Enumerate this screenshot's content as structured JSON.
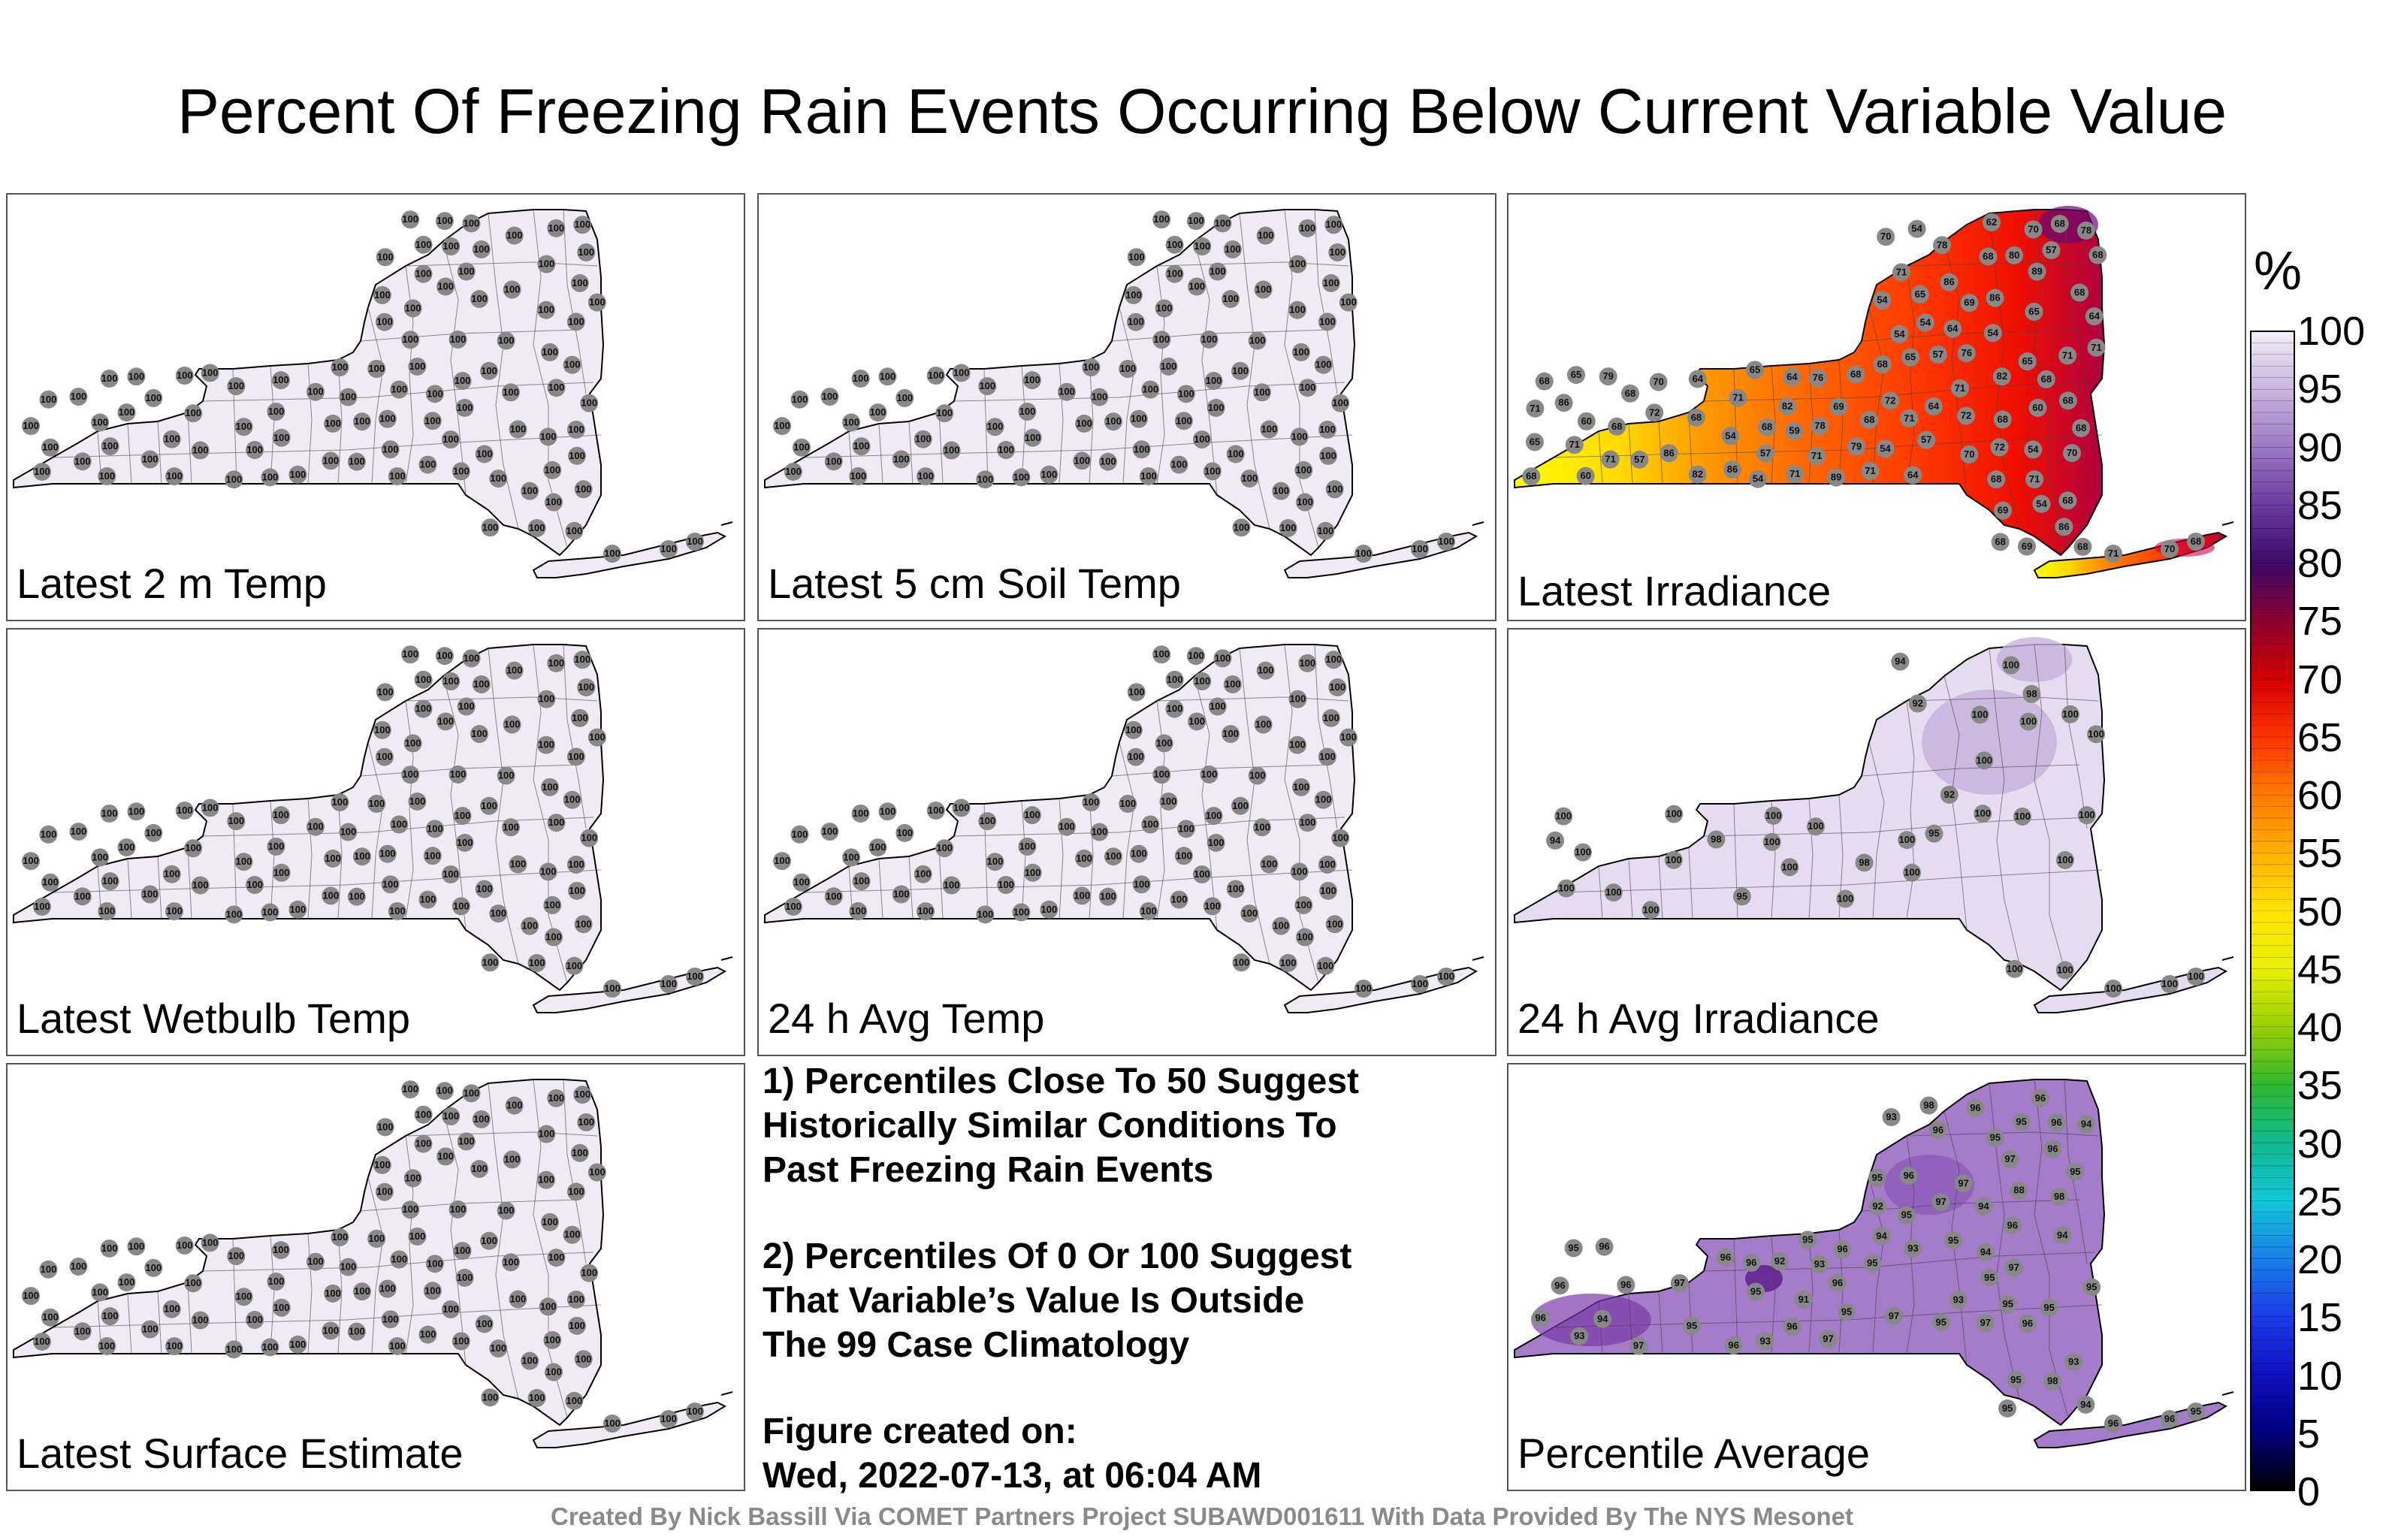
{
  "title": "Percent Of Freezing Rain Events Occurring Below Current Variable Value",
  "panels": [
    {
      "label": "Latest 2 m Temp",
      "mode": "uniform",
      "value": 100
    },
    {
      "label": "Latest 5 cm Soil Temp",
      "mode": "uniform",
      "value": 100
    },
    {
      "label": "Latest Irradiance",
      "mode": "irradiance",
      "values": [
        86,
        78,
        89,
        86,
        82,
        72,
        71,
        72,
        86,
        72,
        86,
        76,
        71,
        68,
        78,
        64,
        65,
        71,
        69,
        70,
        68,
        71,
        62,
        65,
        68,
        68,
        71,
        89,
        76,
        71,
        86,
        70,
        54,
        54,
        70,
        68,
        65,
        78,
        82,
        71,
        68,
        79,
        69,
        54,
        60,
        54,
        60,
        57,
        72,
        65,
        68,
        68,
        54,
        65,
        57,
        54,
        64,
        57,
        70,
        82,
        71,
        69,
        68,
        54,
        57,
        60,
        64,
        65,
        68,
        86,
        71,
        71,
        54,
        59,
        64,
        65,
        68,
        71,
        68,
        79,
        64,
        54,
        57,
        64,
        68,
        68,
        68,
        70,
        69,
        68,
        54,
        68,
        68,
        80,
        71,
        71,
        68,
        68,
        68,
        71,
        70,
        68
      ]
    },
    {
      "label": "Latest Wetbulb Temp",
      "mode": "uniform",
      "value": 100
    },
    {
      "label": "24 h Avg Temp",
      "mode": "uniform",
      "value": 100
    },
    {
      "label": "24 h Avg Irradiance",
      "mode": "avg_irr",
      "values": [
        100,
        95,
        100,
        100,
        100,
        100,
        94,
        92,
        92,
        98,
        100,
        95,
        100,
        100,
        98,
        100,
        94,
        100,
        100,
        100,
        100,
        100,
        100,
        98,
        100,
        100,
        100,
        100,
        100,
        100,
        100,
        100,
        100,
        100,
        100,
        100,
        100,
        100
      ]
    },
    {
      "label": "Latest Surface Estimate",
      "mode": "uniform",
      "value": 100
    },
    {
      "label": "Percentile Average",
      "mode": "average",
      "values": [
        98,
        96,
        98,
        97,
        96,
        97,
        96,
        96,
        96,
        98,
        97,
        93,
        94,
        94,
        91,
        94,
        95,
        96,
        93,
        96,
        95,
        92,
        93,
        88,
        94,
        95,
        96,
        97,
        96,
        96,
        92,
        93,
        94,
        94,
        95,
        95,
        97,
        97,
        96,
        93,
        94,
        93,
        95,
        95,
        95,
        96,
        97,
        95,
        96,
        96,
        97,
        95,
        95,
        95,
        96,
        96,
        96,
        95,
        95,
        96,
        95,
        97,
        95,
        95,
        95,
        93,
        95,
        96,
        96,
        95
      ]
    }
  ],
  "notes": [
    "1) Percentiles Close To 50 Suggest\nHistorically Similar Conditions To\nPast Freezing Rain Events",
    "2) Percentiles Of 0 Or 100 Suggest\nThat Variable’s Value Is Outside\nThe 99 Case Climatology",
    "Figure created on:\nWed, 2022-07-13, at 06:04 AM"
  ],
  "credit": "Created By Nick Bassill Via COMET Partners Project SUBAWD001611 With Data Provided By The NYS Mesonet",
  "colorbar": {
    "unit": "%",
    "ticks": [
      "100",
      "95",
      "90",
      "85",
      "80",
      "75",
      "70",
      "65",
      "60",
      "55",
      "50",
      "45",
      "40",
      "35",
      "30",
      "25",
      "20",
      "15",
      "10",
      "5",
      "0"
    ],
    "stops": [
      "#f3eef7",
      "#c9b5dd",
      "#9c79c4",
      "#6b3a9e",
      "#3d0a6b",
      "#8c0030",
      "#d40000",
      "#ff3300",
      "#ff7a00",
      "#ffb000",
      "#ffe400",
      "#e8f000",
      "#9ad000",
      "#30b830",
      "#10b890",
      "#10c8d8",
      "#1a7ee8",
      "#1a3ce8",
      "#1010c0",
      "#000080",
      "#000000"
    ]
  }
}
